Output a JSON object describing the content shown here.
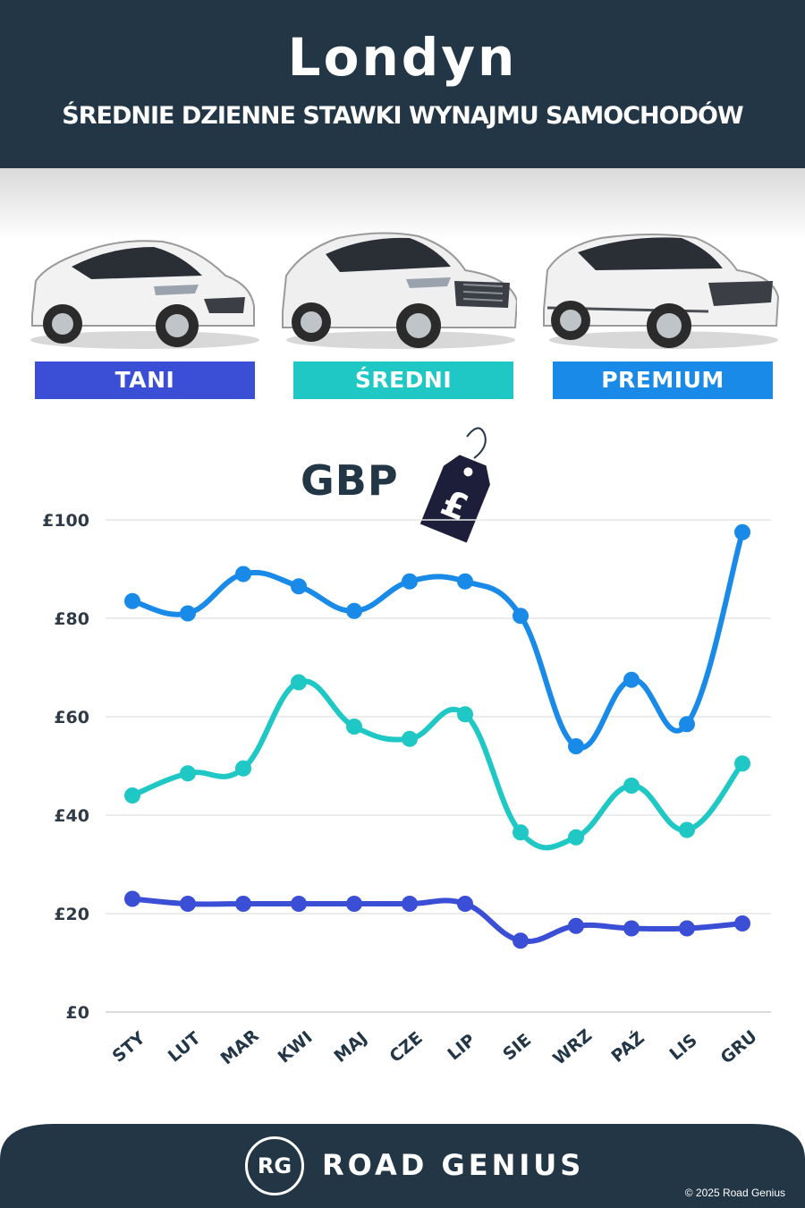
{
  "header": {
    "city": "Londyn",
    "subtitle": "ŚREDNIE DZIENNE STAWKI WYNAJMU SAMOCHODÓW"
  },
  "categories": [
    {
      "label": "TANI",
      "color": "#3a4fd6"
    },
    {
      "label": "ŚREDNI",
      "color": "#1fc8c4"
    },
    {
      "label": "PREMIUM",
      "color": "#1a8ae8"
    }
  ],
  "currency_label": "GBP",
  "price_tag_symbol": "£",
  "chart_data": {
    "type": "line",
    "x": [
      "STY",
      "LUT",
      "MAR",
      "KWI",
      "MAJ",
      "CZE",
      "LIP",
      "SIE",
      "WRZ",
      "PAŹ",
      "LIS",
      "GRU"
    ],
    "y_ticks": [
      "£0",
      "£20",
      "£40",
      "£60",
      "£80",
      "£100"
    ],
    "ylim": [
      0,
      100
    ],
    "grid": true,
    "series": [
      {
        "name": "TANI",
        "color": "#3a4fd6",
        "values": [
          23,
          22,
          22,
          22,
          22,
          22,
          22,
          14.5,
          17.5,
          17,
          17,
          18
        ]
      },
      {
        "name": "ŚREDNI",
        "color": "#1fc8c4",
        "values": [
          44,
          48.5,
          49.5,
          67,
          58,
          55.5,
          60.5,
          36.5,
          35.5,
          46,
          37,
          50.5
        ]
      },
      {
        "name": "PREMIUM",
        "color": "#1a8ae8",
        "values": [
          83.5,
          81,
          89,
          86.5,
          81.5,
          87.5,
          87.5,
          80.5,
          54,
          67.5,
          58.5,
          97.5
        ]
      }
    ]
  },
  "footer": {
    "logo_text": "RG",
    "brand": "ROAD GENIUS",
    "copyright": "© 2025 Road Genius"
  }
}
